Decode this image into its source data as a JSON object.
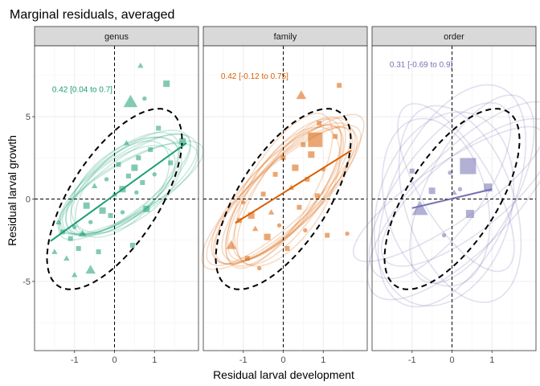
{
  "chart_data": {
    "type": "scatter",
    "title": "Marginal residuals, averaged",
    "xlabel": "Residual larval development",
    "ylabel": "Residual larval growth",
    "xlim": [
      -2.0,
      2.1
    ],
    "ylim": [
      -9.2,
      9.3
    ],
    "xticks": [
      -1,
      0,
      1
    ],
    "xtick_labels": [
      "-1",
      "0",
      "1"
    ],
    "yticks": [
      -5,
      0,
      5
    ],
    "ytick_labels": [
      "-5",
      "0",
      "5"
    ],
    "reference_lines": {
      "x": 0,
      "y": 0
    },
    "grid": true,
    "overall_ellipse": {
      "cx": 0.0,
      "cy": 0.0,
      "rx": 1.25,
      "ry": 5.6,
      "angle": 12
    },
    "panels": [
      {
        "strip": "genus",
        "color": "#1B9E77",
        "annotation": "0.42 [0.04 to 0.7]",
        "annotation_pos": [
          -1.6,
          6.7
        ],
        "trend": {
          "x": [
            -1.6,
            1.8
          ],
          "y": [
            -2.55,
            3.4
          ]
        },
        "ellipses": [
          {
            "cx": 0.25,
            "cy": 0.8,
            "rx": 1.0,
            "ry": 3.1,
            "angle": 18
          },
          {
            "cx": 0.35,
            "cy": 0.9,
            "rx": 1.1,
            "ry": 3.3,
            "angle": 25
          },
          {
            "cx": 0.2,
            "cy": 0.6,
            "rx": 0.95,
            "ry": 3.0,
            "angle": 14
          },
          {
            "cx": 0.3,
            "cy": 1.0,
            "rx": 1.05,
            "ry": 3.4,
            "angle": 22
          },
          {
            "cx": 0.4,
            "cy": 0.7,
            "rx": 1.0,
            "ry": 3.2,
            "angle": 30
          },
          {
            "cx": 0.15,
            "cy": 0.5,
            "rx": 1.0,
            "ry": 2.9,
            "angle": 20
          },
          {
            "cx": 0.3,
            "cy": 0.85,
            "rx": 1.15,
            "ry": 3.0,
            "angle": 16
          },
          {
            "cx": 0.25,
            "cy": 0.75,
            "rx": 0.9,
            "ry": 3.5,
            "angle": 24
          },
          {
            "cx": 0.35,
            "cy": 0.6,
            "rx": 1.05,
            "ry": 3.1,
            "angle": 28
          },
          {
            "cx": 0.2,
            "cy": 0.95,
            "rx": 1.0,
            "ry": 3.25,
            "angle": 19
          }
        ],
        "points": [
          {
            "x": -1.5,
            "y": -3.2,
            "shape": "triangle",
            "size": 3
          },
          {
            "x": -1.4,
            "y": -1.4,
            "shape": "triangle",
            "size": 3
          },
          {
            "x": -1.3,
            "y": -2.0,
            "shape": "square",
            "size": 3
          },
          {
            "x": -1.2,
            "y": -3.6,
            "shape": "triangle",
            "size": 3
          },
          {
            "x": -1.1,
            "y": -2.4,
            "shape": "square",
            "size": 3
          },
          {
            "x": -1.0,
            "y": -1.7,
            "shape": "circle",
            "size": 3
          },
          {
            "x": -1.0,
            "y": -4.6,
            "shape": "triangle",
            "size": 3
          },
          {
            "x": -0.9,
            "y": -3.0,
            "shape": "square",
            "size": 3
          },
          {
            "x": -0.8,
            "y": -2.1,
            "shape": "triangle",
            "size": 4
          },
          {
            "x": -0.7,
            "y": -0.4,
            "shape": "square",
            "size": 4
          },
          {
            "x": -0.6,
            "y": -1.4,
            "shape": "circle",
            "size": 3
          },
          {
            "x": -0.6,
            "y": -4.3,
            "shape": "triangle",
            "size": 5
          },
          {
            "x": -0.5,
            "y": 0.8,
            "shape": "triangle",
            "size": 3
          },
          {
            "x": -0.4,
            "y": -3.2,
            "shape": "square",
            "size": 3
          },
          {
            "x": -0.3,
            "y": -0.7,
            "shape": "square",
            "size": 4
          },
          {
            "x": -0.2,
            "y": 1.2,
            "shape": "circle",
            "size": 3
          },
          {
            "x": -0.1,
            "y": -1.0,
            "shape": "square",
            "size": 3
          },
          {
            "x": 0.0,
            "y": 0.3,
            "shape": "triangle",
            "size": 3
          },
          {
            "x": 0.1,
            "y": 2.1,
            "shape": "square",
            "size": 3
          },
          {
            "x": 0.2,
            "y": 0.6,
            "shape": "square",
            "size": 4
          },
          {
            "x": 0.2,
            "y": -0.8,
            "shape": "circle",
            "size": 3
          },
          {
            "x": 0.3,
            "y": 3.4,
            "shape": "triangle",
            "size": 3
          },
          {
            "x": 0.35,
            "y": 1.4,
            "shape": "square",
            "size": 3
          },
          {
            "x": 0.4,
            "y": 5.9,
            "shape": "triangle",
            "size": 7
          },
          {
            "x": 0.45,
            "y": -2.8,
            "shape": "square",
            "size": 3
          },
          {
            "x": 0.5,
            "y": 1.9,
            "shape": "square",
            "size": 4
          },
          {
            "x": 0.55,
            "y": 0.4,
            "shape": "circle",
            "size": 3
          },
          {
            "x": 0.6,
            "y": 2.5,
            "shape": "square",
            "size": 3
          },
          {
            "x": 0.65,
            "y": 8.1,
            "shape": "triangle",
            "size": 3
          },
          {
            "x": 0.7,
            "y": 1.0,
            "shape": "square",
            "size": 3
          },
          {
            "x": 0.75,
            "y": 6.1,
            "shape": "circle",
            "size": 3
          },
          {
            "x": 0.8,
            "y": -0.6,
            "shape": "square",
            "size": 4
          },
          {
            "x": 0.9,
            "y": 3.0,
            "shape": "square",
            "size": 3
          },
          {
            "x": 1.0,
            "y": 1.5,
            "shape": "circle",
            "size": 3
          },
          {
            "x": 1.1,
            "y": 4.3,
            "shape": "square",
            "size": 3
          },
          {
            "x": 1.3,
            "y": 7.0,
            "shape": "square",
            "size": 4
          },
          {
            "x": 1.4,
            "y": 2.2,
            "shape": "square",
            "size": 3
          },
          {
            "x": 1.7,
            "y": 3.5,
            "shape": "square",
            "size": 4
          }
        ]
      },
      {
        "strip": "family",
        "color": "#D95F02",
        "annotation": "0.42 [-0.12 to 0.75]",
        "annotation_pos": [
          -1.6,
          7.5
        ],
        "trend": {
          "x": [
            -1.2,
            1.7
          ],
          "y": [
            -1.45,
            2.95
          ]
        },
        "ellipses": [
          {
            "cx": 0.0,
            "cy": 0.4,
            "rx": 0.95,
            "ry": 4.6,
            "angle": 14
          },
          {
            "cx": 0.1,
            "cy": 0.3,
            "rx": 1.0,
            "ry": 4.3,
            "angle": 18
          },
          {
            "cx": -0.1,
            "cy": 0.5,
            "rx": 0.9,
            "ry": 4.8,
            "angle": 12
          },
          {
            "cx": 0.05,
            "cy": 0.2,
            "rx": 1.05,
            "ry": 4.4,
            "angle": 20
          },
          {
            "cx": 0.15,
            "cy": 0.6,
            "rx": 0.95,
            "ry": 4.5,
            "angle": 16
          },
          {
            "cx": -0.05,
            "cy": 0.1,
            "rx": 1.0,
            "ry": 4.7,
            "angle": 22
          },
          {
            "cx": 0.1,
            "cy": 0.45,
            "rx": 0.85,
            "ry": 4.2,
            "angle": 15
          },
          {
            "cx": 0.0,
            "cy": 0.35,
            "rx": 1.1,
            "ry": 4.5,
            "angle": 19
          },
          {
            "cx": 0.2,
            "cy": 0.5,
            "rx": 0.9,
            "ry": 4.6,
            "angle": 13
          },
          {
            "cx": -0.1,
            "cy": 0.25,
            "rx": 1.0,
            "ry": 4.4,
            "angle": 17
          },
          {
            "cx": 0.05,
            "cy": 0.55,
            "rx": 0.95,
            "ry": 4.9,
            "angle": 21
          },
          {
            "cx": 0.1,
            "cy": 0.15,
            "rx": 1.05,
            "ry": 4.3,
            "angle": 11
          }
        ],
        "points": [
          {
            "x": -1.3,
            "y": -2.8,
            "shape": "triangle",
            "size": 5
          },
          {
            "x": -1.1,
            "y": -1.3,
            "shape": "square",
            "size": 3
          },
          {
            "x": -1.0,
            "y": -0.2,
            "shape": "circle",
            "size": 3
          },
          {
            "x": -0.9,
            "y": -3.6,
            "shape": "square",
            "size": 3
          },
          {
            "x": -0.8,
            "y": -1.0,
            "shape": "square",
            "size": 4
          },
          {
            "x": -0.7,
            "y": -1.8,
            "shape": "triangle",
            "size": 3
          },
          {
            "x": -0.6,
            "y": -4.2,
            "shape": "circle",
            "size": 3
          },
          {
            "x": -0.5,
            "y": 0.3,
            "shape": "square",
            "size": 3
          },
          {
            "x": -0.4,
            "y": -2.3,
            "shape": "square",
            "size": 4
          },
          {
            "x": -0.3,
            "y": -0.8,
            "shape": "triangle",
            "size": 3
          },
          {
            "x": -0.2,
            "y": 1.5,
            "shape": "square",
            "size": 3
          },
          {
            "x": -0.1,
            "y": -1.6,
            "shape": "circle",
            "size": 3
          },
          {
            "x": 0.0,
            "y": 2.5,
            "shape": "square",
            "size": 3
          },
          {
            "x": 0.1,
            "y": -3.0,
            "shape": "square",
            "size": 3
          },
          {
            "x": 0.2,
            "y": 0.7,
            "shape": "triangle",
            "size": 3
          },
          {
            "x": 0.3,
            "y": 1.9,
            "shape": "square",
            "size": 4
          },
          {
            "x": 0.4,
            "y": -0.5,
            "shape": "square",
            "size": 3
          },
          {
            "x": 0.45,
            "y": 6.3,
            "shape": "triangle",
            "size": 5
          },
          {
            "x": 0.5,
            "y": 3.3,
            "shape": "square",
            "size": 3
          },
          {
            "x": 0.55,
            "y": -1.9,
            "shape": "circle",
            "size": 3
          },
          {
            "x": 0.6,
            "y": 1.2,
            "shape": "square",
            "size": 3
          },
          {
            "x": 0.7,
            "y": 2.7,
            "shape": "square",
            "size": 4
          },
          {
            "x": 0.8,
            "y": 3.6,
            "shape": "square",
            "size": 9
          },
          {
            "x": 0.85,
            "y": 0.2,
            "shape": "square",
            "size": 3
          },
          {
            "x": 0.9,
            "y": 4.6,
            "shape": "square",
            "size": 3
          },
          {
            "x": 1.0,
            "y": 1.8,
            "shape": "circle",
            "size": 3
          },
          {
            "x": 1.1,
            "y": -2.2,
            "shape": "square",
            "size": 3
          },
          {
            "x": 1.3,
            "y": 3.8,
            "shape": "square",
            "size": 3
          },
          {
            "x": 1.4,
            "y": 6.9,
            "shape": "square",
            "size": 3
          },
          {
            "x": 1.6,
            "y": -2.1,
            "shape": "circle",
            "size": 3
          }
        ]
      },
      {
        "strip": "order",
        "color": "#7570B3",
        "annotation": "0.31 [-0.69 to 0.9]",
        "annotation_pos": [
          -1.6,
          8.2
        ],
        "trend": {
          "x": [
            -1.0,
            1.0
          ],
          "y": [
            -0.55,
            0.6
          ]
        },
        "ellipses": [
          {
            "cx": 0.0,
            "cy": 0.2,
            "rx": 1.6,
            "ry": 6.8,
            "angle": 8
          },
          {
            "cx": 0.2,
            "cy": -0.3,
            "rx": 1.4,
            "ry": 6.0,
            "angle": -6
          },
          {
            "cx": -0.3,
            "cy": 0.5,
            "rx": 1.2,
            "ry": 5.5,
            "angle": 14
          },
          {
            "cx": 0.4,
            "cy": 0.4,
            "rx": 1.3,
            "ry": 4.8,
            "angle": 22
          },
          {
            "cx": -0.2,
            "cy": -0.6,
            "rx": 1.7,
            "ry": 5.9,
            "angle": 4
          },
          {
            "cx": 0.1,
            "cy": 0.7,
            "rx": 1.0,
            "ry": 5.2,
            "angle": -12
          },
          {
            "cx": 0.3,
            "cy": -0.1,
            "rx": 1.5,
            "ry": 6.3,
            "angle": 18
          },
          {
            "cx": -0.1,
            "cy": 0.3,
            "rx": 1.1,
            "ry": 4.6,
            "angle": 28
          },
          {
            "cx": 0.5,
            "cy": 0.6,
            "rx": 1.2,
            "ry": 5.8,
            "angle": 10
          },
          {
            "cx": -0.4,
            "cy": -0.2,
            "rx": 1.3,
            "ry": 5.1,
            "angle": -4
          }
        ],
        "points": [
          {
            "x": -1.0,
            "y": 1.7,
            "shape": "square",
            "size": 3
          },
          {
            "x": -0.8,
            "y": -0.6,
            "shape": "triangle",
            "size": 8
          },
          {
            "x": -0.5,
            "y": 0.5,
            "shape": "square",
            "size": 4
          },
          {
            "x": -0.2,
            "y": -2.2,
            "shape": "circle",
            "size": 3
          },
          {
            "x": -0.05,
            "y": 1.6,
            "shape": "circle",
            "size": 3
          },
          {
            "x": 0.05,
            "y": 0.4,
            "shape": "triangle",
            "size": 3
          },
          {
            "x": 0.2,
            "y": 0.6,
            "shape": "circle",
            "size": 3
          },
          {
            "x": 0.4,
            "y": 2.0,
            "shape": "square",
            "size": 10
          },
          {
            "x": 0.45,
            "y": -0.9,
            "shape": "square",
            "size": 5
          },
          {
            "x": 0.9,
            "y": 0.7,
            "shape": "square",
            "size": 5
          }
        ]
      }
    ]
  }
}
